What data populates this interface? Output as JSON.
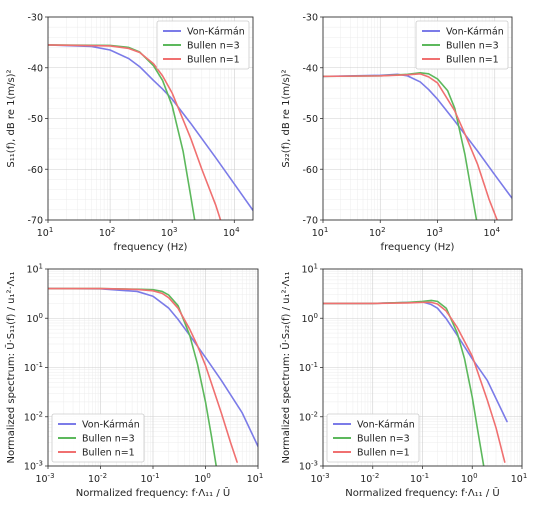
{
  "chart_data": [
    {
      "type": "line",
      "ylabel": "S₁₁(f), dB re 1(m/s)²",
      "xlabel": "frequency (Hz)",
      "xscale": "log",
      "xlim": [
        10,
        20000
      ],
      "ylim": [
        -70,
        -30
      ],
      "xticks": [
        {
          "v": 10,
          "b": "10",
          "e": "1"
        },
        {
          "v": 100,
          "b": "10",
          "e": "2"
        },
        {
          "v": 1000,
          "b": "10",
          "e": "3"
        },
        {
          "v": 10000,
          "b": "10",
          "e": "4"
        }
      ],
      "yticks": [
        {
          "v": -30,
          "t": "-30"
        },
        {
          "v": -40,
          "t": "-40"
        },
        {
          "v": -50,
          "t": "-50"
        },
        {
          "v": -60,
          "t": "-60"
        },
        {
          "v": -70,
          "t": "-70"
        }
      ],
      "grid": true,
      "legend_position": "top-right",
      "series": [
        {
          "name": "Von-Kármán",
          "color": "#7b7be8",
          "x": [
            10,
            50,
            100,
            200,
            300,
            500,
            700,
            1000,
            2000,
            5000,
            10000,
            20000
          ],
          "y": [
            -35.5,
            -35.8,
            -36.5,
            -38.2,
            -39.8,
            -42.5,
            -44.2,
            -46.2,
            -51.0,
            -57.7,
            -62.9,
            -68.1
          ]
        },
        {
          "name": "Bullen n=3",
          "color": "#5cb85c",
          "x": [
            10,
            100,
            200,
            300,
            500,
            700,
            1000,
            1500,
            2000,
            2300
          ],
          "y": [
            -35.5,
            -35.6,
            -36.0,
            -36.9,
            -39.6,
            -42.5,
            -47.5,
            -56.5,
            -65.5,
            -70.0
          ]
        },
        {
          "name": "Bullen n=1",
          "color": "#f07070",
          "x": [
            10,
            100,
            200,
            300,
            500,
            700,
            1000,
            2000,
            3000,
            5000,
            6000
          ],
          "y": [
            -35.5,
            -35.7,
            -36.2,
            -37.0,
            -39.2,
            -41.6,
            -45.0,
            -54.0,
            -60.0,
            -67.0,
            -70.0
          ]
        }
      ]
    },
    {
      "type": "line",
      "ylabel": "S₂₂(f), dB re 1(m/s)²",
      "xlabel": "frequency (Hz)",
      "xscale": "log",
      "xlim": [
        10,
        20000
      ],
      "ylim": [
        -70,
        -30
      ],
      "xticks": [
        {
          "v": 10,
          "b": "10",
          "e": "1"
        },
        {
          "v": 100,
          "b": "10",
          "e": "2"
        },
        {
          "v": 1000,
          "b": "10",
          "e": "3"
        },
        {
          "v": 10000,
          "b": "10",
          "e": "4"
        }
      ],
      "yticks": [
        {
          "v": -30,
          "t": "-30"
        },
        {
          "v": -40,
          "t": "-40"
        },
        {
          "v": -50,
          "t": "-50"
        },
        {
          "v": -60,
          "t": "-60"
        },
        {
          "v": -70,
          "t": "-70"
        }
      ],
      "grid": true,
      "legend_position": "top-right",
      "series": [
        {
          "name": "Von-Kármán",
          "color": "#7b7be8",
          "x": [
            10,
            100,
            200,
            300,
            500,
            700,
            1000,
            2000,
            5000,
            10000,
            20000
          ],
          "y": [
            -41.7,
            -41.5,
            -41.3,
            -41.6,
            -42.8,
            -44.3,
            -46.2,
            -50.5,
            -56.4,
            -61.1,
            -65.7
          ]
        },
        {
          "name": "Bullen n=3",
          "color": "#5cb85c",
          "x": [
            10,
            100,
            300,
            500,
            700,
            1000,
            1500,
            2000,
            3000,
            4000,
            4800
          ],
          "y": [
            -41.7,
            -41.6,
            -41.3,
            -41.0,
            -41.2,
            -42.2,
            -44.5,
            -48.0,
            -57.0,
            -65.0,
            -70.0
          ]
        },
        {
          "name": "Bullen n=1",
          "color": "#f07070",
          "x": [
            10,
            100,
            300,
            500,
            700,
            1000,
            2000,
            3000,
            5000,
            8000,
            11000
          ],
          "y": [
            -41.7,
            -41.6,
            -41.4,
            -41.2,
            -41.8,
            -43.0,
            -48.5,
            -53.0,
            -59.0,
            -66.0,
            -70.0
          ]
        }
      ]
    },
    {
      "type": "line",
      "ylabel": "Normalized spectrum: Ū·S₁₁(f) / u₁²·Λ₁₁",
      "xlabel": "Normalized frequency: f·Λ₁₁ / Ū",
      "xscale": "log",
      "yscale": "log",
      "xlim": [
        0.001,
        10
      ],
      "ylim": [
        0.001,
        10
      ],
      "xticks": [
        {
          "v": 0.001,
          "b": "10",
          "e": "-3"
        },
        {
          "v": 0.01,
          "b": "10",
          "e": "-2"
        },
        {
          "v": 0.1,
          "b": "10",
          "e": "-1"
        },
        {
          "v": 1,
          "b": "10",
          "e": "0"
        },
        {
          "v": 10,
          "b": "10",
          "e": "1"
        }
      ],
      "yticks": [
        {
          "v": 0.001,
          "b": "10",
          "e": "-3"
        },
        {
          "v": 0.01,
          "b": "10",
          "e": "-2"
        },
        {
          "v": 0.1,
          "b": "10",
          "e": "-1"
        },
        {
          "v": 1,
          "b": "10",
          "e": "0"
        },
        {
          "v": 10,
          "b": "10",
          "e": "1"
        }
      ],
      "grid": true,
      "legend_position": "bottom-left",
      "series": [
        {
          "name": "Von-Kármán",
          "color": "#7b7be8",
          "x": [
            0.001,
            0.01,
            0.05,
            0.1,
            0.2,
            0.3,
            0.5,
            1,
            2,
            5,
            10
          ],
          "y": [
            4.0,
            3.95,
            3.5,
            2.8,
            1.6,
            0.95,
            0.45,
            0.16,
            0.055,
            0.012,
            0.0025
          ]
        },
        {
          "name": "Bullen n=3",
          "color": "#5cb85c",
          "x": [
            0.001,
            0.01,
            0.05,
            0.1,
            0.15,
            0.2,
            0.3,
            0.5,
            0.7,
            1.0,
            1.3,
            1.6
          ],
          "y": [
            4.0,
            4.0,
            3.9,
            3.8,
            3.5,
            2.95,
            1.8,
            0.45,
            0.12,
            0.02,
            0.004,
            0.001
          ]
        },
        {
          "name": "Bullen n=1",
          "color": "#f07070",
          "x": [
            0.001,
            0.01,
            0.05,
            0.1,
            0.15,
            0.2,
            0.3,
            0.5,
            0.7,
            1,
            2,
            3,
            4
          ],
          "y": [
            4.0,
            4.0,
            3.85,
            3.6,
            3.2,
            2.6,
            1.6,
            0.6,
            0.28,
            0.11,
            0.012,
            0.003,
            0.0012
          ]
        }
      ]
    },
    {
      "type": "line",
      "ylabel": "Normalized spectrum: Ū·S₂₂(f) / u₁²·Λ₁₁",
      "xlabel": "Normalized frequency: f·Λ₁₁ / Ū",
      "xscale": "log",
      "yscale": "log",
      "xlim": [
        0.001,
        10
      ],
      "ylim": [
        0.001,
        10
      ],
      "xticks": [
        {
          "v": 0.001,
          "b": "10",
          "e": "-3"
        },
        {
          "v": 0.01,
          "b": "10",
          "e": "-2"
        },
        {
          "v": 0.1,
          "b": "10",
          "e": "-1"
        },
        {
          "v": 1,
          "b": "10",
          "e": "0"
        },
        {
          "v": 10,
          "b": "10",
          "e": "1"
        }
      ],
      "yticks": [
        {
          "v": 0.001,
          "b": "10",
          "e": "-3"
        },
        {
          "v": 0.01,
          "b": "10",
          "e": "-2"
        },
        {
          "v": 0.1,
          "b": "10",
          "e": "-1"
        },
        {
          "v": 1,
          "b": "10",
          "e": "0"
        },
        {
          "v": 10,
          "b": "10",
          "e": "1"
        }
      ],
      "grid": true,
      "legend_position": "bottom-left",
      "series": [
        {
          "name": "Von-Kármán",
          "color": "#7b7be8",
          "x": [
            0.001,
            0.01,
            0.05,
            0.1,
            0.15,
            0.2,
            0.3,
            0.5,
            1,
            2,
            5
          ],
          "y": [
            2.0,
            2.0,
            2.1,
            2.15,
            1.9,
            1.6,
            0.98,
            0.45,
            0.15,
            0.055,
            0.008
          ]
        },
        {
          "name": "Bullen n=3",
          "color": "#5cb85c",
          "x": [
            0.001,
            0.01,
            0.05,
            0.1,
            0.15,
            0.2,
            0.3,
            0.5,
            0.7,
            1.0,
            1.3,
            1.7
          ],
          "y": [
            2.0,
            2.0,
            2.1,
            2.2,
            2.3,
            2.2,
            1.6,
            0.5,
            0.15,
            0.025,
            0.005,
            0.001
          ]
        },
        {
          "name": "Bullen n=1",
          "color": "#f07070",
          "x": [
            0.001,
            0.01,
            0.05,
            0.1,
            0.15,
            0.2,
            0.3,
            0.5,
            1,
            2,
            3,
            4.5
          ],
          "y": [
            2.0,
            2.0,
            2.05,
            2.1,
            2.1,
            1.95,
            1.4,
            0.65,
            0.17,
            0.022,
            0.006,
            0.0012
          ]
        }
      ]
    }
  ]
}
